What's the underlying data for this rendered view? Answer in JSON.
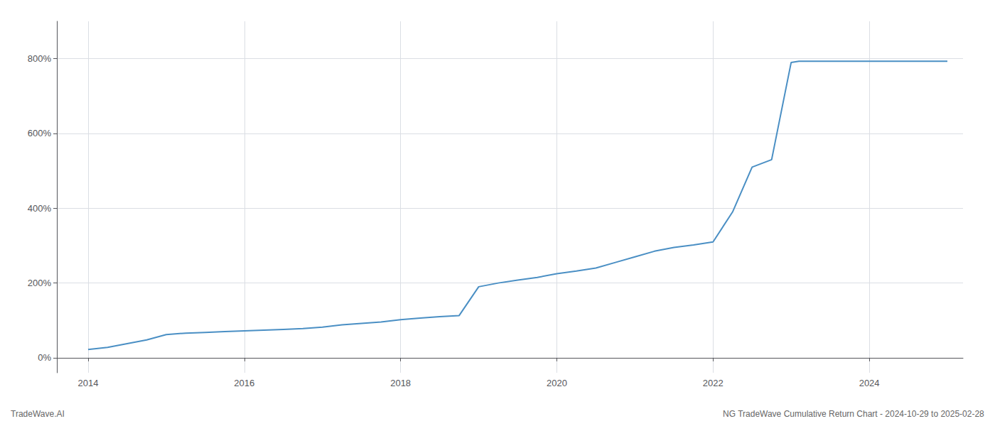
{
  "chart_data": {
    "type": "line",
    "title": "NG TradeWave Cumulative Return Chart - 2024-10-29 to 2025-02-28",
    "annotations": [
      "TradeWave.AI"
    ],
    "color": "#4a8fc4",
    "grid": true,
    "x": [
      2014.0,
      2014.25,
      2014.5,
      2014.75,
      2015.0,
      2015.25,
      2015.5,
      2015.75,
      2016.0,
      2016.25,
      2016.5,
      2016.75,
      2017.0,
      2017.25,
      2017.5,
      2017.75,
      2018.0,
      2018.25,
      2018.5,
      2018.75,
      2019.0,
      2019.25,
      2019.5,
      2019.75,
      2020.0,
      2020.25,
      2020.5,
      2020.75,
      2021.0,
      2021.25,
      2021.5,
      2021.75,
      2022.0,
      2022.25,
      2022.5,
      2022.75,
      2023.0,
      2023.1,
      2024.0,
      2025.0
    ],
    "values": [
      22,
      28,
      38,
      48,
      62,
      66,
      68,
      70,
      72,
      74,
      76,
      78,
      82,
      88,
      92,
      96,
      102,
      106,
      110,
      113,
      190,
      200,
      208,
      215,
      225,
      232,
      240,
      255,
      270,
      285,
      295,
      302,
      310,
      390,
      510,
      530,
      790,
      793,
      793,
      793
    ],
    "xlim": [
      2013.6,
      2025.2
    ],
    "xticks": [
      2014,
      2016,
      2018,
      2020,
      2022,
      2024
    ],
    "ylim": [
      -40,
      900
    ],
    "yticks": [
      {
        "value": 0,
        "label": "0%"
      },
      {
        "value": 200,
        "label": "200%"
      },
      {
        "value": 400,
        "label": "400%"
      },
      {
        "value": 600,
        "label": "600%"
      },
      {
        "value": 800,
        "label": "800%"
      }
    ]
  }
}
